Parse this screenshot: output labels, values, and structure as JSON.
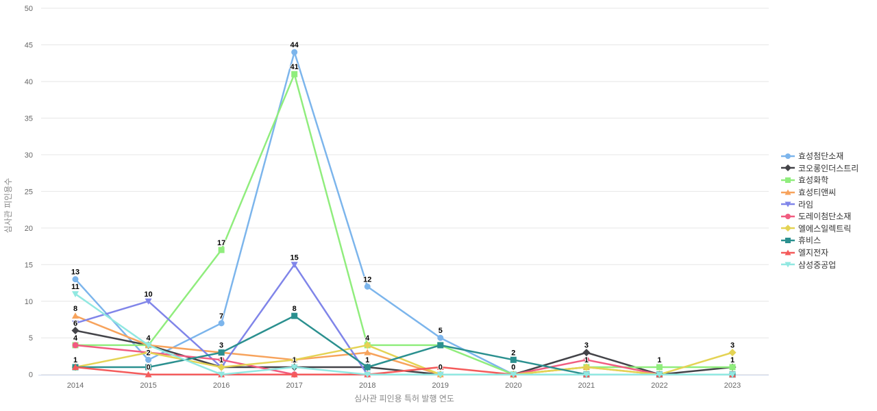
{
  "chart_data": {
    "type": "line",
    "title": "",
    "xlabel": "심사관 피인용 특허 발행 연도",
    "ylabel": "심사관 피인용수",
    "ylim": [
      0,
      50
    ],
    "ytick_interval": 5,
    "yticks": [
      "0",
      "5",
      "10",
      "15",
      "20",
      "25",
      "30",
      "35",
      "40",
      "45",
      "50"
    ],
    "grid": "horizontal",
    "legend_position": "right",
    "axis_line_color": "#ccd6eb",
    "gridline_color": "#e6e6e6",
    "categories": [
      "2014",
      "2015",
      "2016",
      "2017",
      "2018",
      "2019",
      "2020",
      "2021",
      "2022",
      "2023"
    ],
    "series": [
      {
        "name": "효성첨단소재",
        "color": "#7cb5ec",
        "marker": "circle",
        "values": [
          13,
          2,
          7,
          44,
          12,
          5,
          0,
          0,
          0,
          0
        ],
        "visible_labels": [
          "13",
          "2",
          "7",
          "44",
          "12",
          "5",
          null,
          null,
          null,
          null
        ]
      },
      {
        "name": "코오롱인더스트리",
        "color": "#434348",
        "marker": "diamond",
        "values": [
          6,
          4,
          1,
          1,
          1,
          0,
          0,
          3,
          0,
          1
        ],
        "visible_labels": [
          "6",
          null,
          null,
          null,
          null,
          null,
          null,
          "3",
          null,
          null
        ]
      },
      {
        "name": "효성화학",
        "color": "#90ed7d",
        "marker": "square",
        "values": [
          4,
          4,
          17,
          41,
          4,
          4,
          0,
          1,
          1,
          1
        ],
        "visible_labels": [
          "4",
          null,
          "17",
          "41",
          "4",
          null,
          null,
          "1",
          "1",
          "1"
        ]
      },
      {
        "name": "효성티앤씨",
        "color": "#f7a35c",
        "marker": "triangle",
        "values": [
          8,
          4,
          3,
          2,
          3,
          0,
          0,
          1,
          0,
          0
        ],
        "visible_labels": [
          "8",
          null,
          null,
          null,
          null,
          null,
          null,
          null,
          null,
          null
        ]
      },
      {
        "name": "라임",
        "color": "#8085e9",
        "marker": "triangle-down",
        "values": [
          7,
          10,
          1,
          15,
          0,
          0,
          0,
          0,
          0,
          0
        ],
        "visible_labels": [
          null,
          "10",
          null,
          "15",
          null,
          null,
          null,
          null,
          null,
          null
        ]
      },
      {
        "name": "도레이첨단소재",
        "color": "#f15c80",
        "marker": "circle",
        "values": [
          4,
          3,
          2,
          0,
          0,
          0,
          0,
          2,
          0,
          0
        ],
        "visible_labels": [
          null,
          null,
          null,
          null,
          null,
          null,
          null,
          null,
          null,
          null
        ]
      },
      {
        "name": "엘에스일렉트릭",
        "color": "#e4d354",
        "marker": "diamond",
        "values": [
          1,
          3,
          1,
          2,
          4,
          0,
          0,
          1,
          0,
          3
        ],
        "visible_labels": [
          null,
          null,
          "1",
          null,
          null,
          null,
          null,
          null,
          null,
          "3"
        ]
      },
      {
        "name": "휴비스",
        "color": "#2b908f",
        "marker": "square",
        "values": [
          1,
          1,
          3,
          8,
          1,
          4,
          2,
          0,
          0,
          0
        ],
        "visible_labels": [
          "1",
          null,
          "3",
          "8",
          "1",
          null,
          "2",
          null,
          null,
          null
        ]
      },
      {
        "name": "엘지전자",
        "color": "#f45b5b",
        "marker": "triangle",
        "values": [
          1,
          0,
          0,
          0,
          0,
          1,
          0,
          0,
          0,
          0
        ],
        "visible_labels": [
          null,
          "0",
          null,
          null,
          null,
          null,
          null,
          null,
          null,
          null
        ]
      },
      {
        "name": "삼성중공업",
        "color": "#91e8e1",
        "marker": "triangle-down",
        "values": [
          11,
          4,
          0,
          1,
          0,
          0,
          0,
          0,
          0,
          0
        ],
        "visible_labels": [
          "11",
          "4",
          null,
          "1",
          null,
          "0",
          "0",
          null,
          null,
          null
        ]
      }
    ]
  }
}
